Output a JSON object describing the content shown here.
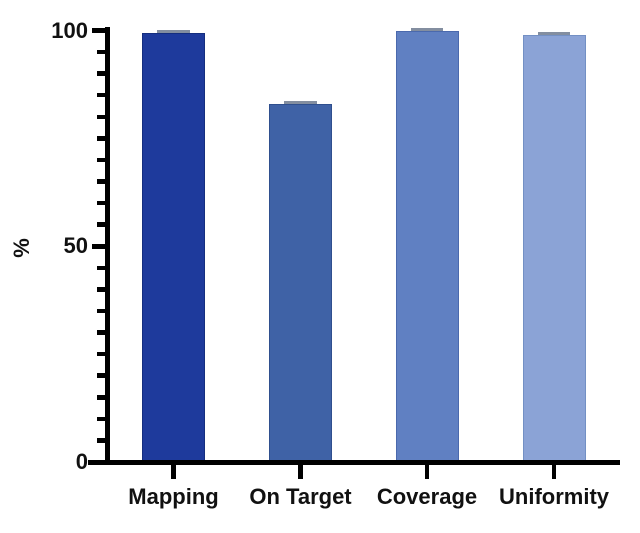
{
  "chart_data": {
    "type": "bar",
    "title": "",
    "ylabel": "%",
    "xlabel": "",
    "categories": [
      "Mapping",
      "On Target",
      "Coverage",
      "Uniformity"
    ],
    "values": [
      99.5,
      83,
      100,
      99
    ],
    "bar_colors": [
      "#1e3a9c",
      "#3f62a6",
      "#6080c2",
      "#8ba3d6"
    ],
    "bar_border_colors": [
      "#152e7f",
      "#2f4f8e",
      "#4a69ad",
      "#7390c4"
    ],
    "error_cap_color": "#5a6880",
    "has_error_caps": true,
    "ylim": [
      0,
      100
    ],
    "ytick_major_values": [
      0,
      50,
      100
    ],
    "ytick_major_labels": [
      "0",
      "50",
      "100"
    ],
    "ytick_minor_step": 5,
    "axis_color": "#000000",
    "text_color": "#111111",
    "grid": false,
    "legend": "none",
    "background": "#ffffff"
  }
}
